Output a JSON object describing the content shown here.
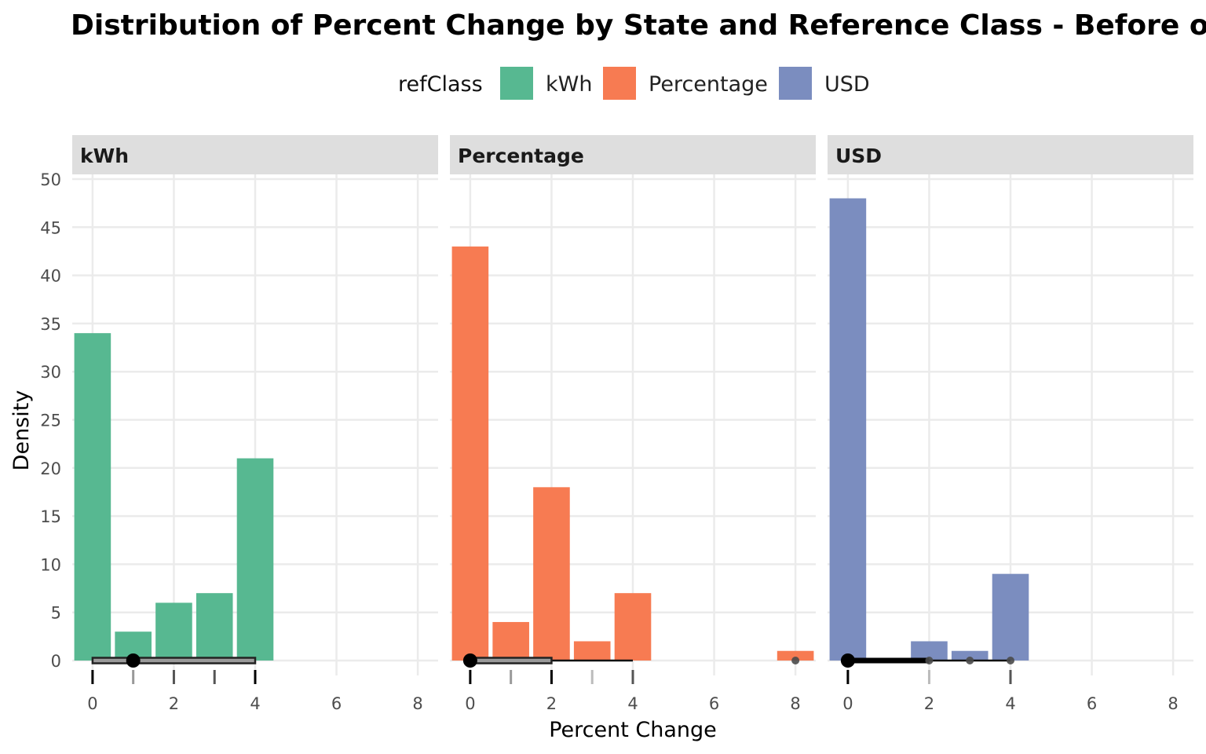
{
  "chart_data": {
    "type": "bar",
    "title": "Distribution of Percent Change by State and Reference Class - Before outli",
    "xlabel": "Percent Change",
    "ylabel": "Density",
    "xlim": [
      -0.5,
      8.5
    ],
    "ylim": [
      0,
      50
    ],
    "x_ticks": [
      0,
      2,
      4,
      6,
      8
    ],
    "y_ticks": [
      0,
      5,
      10,
      15,
      20,
      25,
      30,
      35,
      40,
      45,
      50
    ],
    "grid": true,
    "legend": {
      "title": "refClass",
      "position": "top",
      "entries": [
        {
          "label": "kWh",
          "color": "#57B891"
        },
        {
          "label": "Percentage",
          "color": "#F77B52"
        },
        {
          "label": "USD",
          "color": "#7B8DBF"
        }
      ]
    },
    "facets": [
      {
        "label": "kWh",
        "color": "#57B891",
        "bars": [
          {
            "x": 0,
            "value": 34
          },
          {
            "x": 1,
            "value": 3
          },
          {
            "x": 2,
            "value": 6
          },
          {
            "x": 3,
            "value": 7
          },
          {
            "x": 4,
            "value": 21
          }
        ],
        "rug": [
          {
            "x": 0,
            "shade": "#000000"
          },
          {
            "x": 1,
            "shade": "#999999"
          },
          {
            "x": 2,
            "shade": "#555555"
          },
          {
            "x": 3,
            "shade": "#555555"
          },
          {
            "x": 4,
            "shade": "#000000"
          }
        ],
        "boxplot": {
          "min": 0,
          "q1": 0,
          "median": 1,
          "q3": 4,
          "max": 4,
          "outliers": []
        }
      },
      {
        "label": "Percentage",
        "color": "#F77B52",
        "bars": [
          {
            "x": 0,
            "value": 43
          },
          {
            "x": 1,
            "value": 4
          },
          {
            "x": 2,
            "value": 18
          },
          {
            "x": 3,
            "value": 2
          },
          {
            "x": 4,
            "value": 7
          },
          {
            "x": 8,
            "value": 1
          }
        ],
        "rug": [
          {
            "x": 0,
            "shade": "#000000"
          },
          {
            "x": 1,
            "shade": "#999999"
          },
          {
            "x": 2,
            "shade": "#000000"
          },
          {
            "x": 3,
            "shade": "#bbbbbb"
          },
          {
            "x": 4,
            "shade": "#555555"
          }
        ],
        "boxplot": {
          "min": 0,
          "q1": 0,
          "median": 0,
          "q3": 2,
          "max": 4,
          "outliers": [
            8
          ]
        }
      },
      {
        "label": "USD",
        "color": "#7B8DBF",
        "bars": [
          {
            "x": 0,
            "value": 48
          },
          {
            "x": 2,
            "value": 2
          },
          {
            "x": 3,
            "value": 1
          },
          {
            "x": 4,
            "value": 9
          }
        ],
        "rug": [
          {
            "x": 0,
            "shade": "#000000"
          },
          {
            "x": 2,
            "shade": "#bbbbbb"
          },
          {
            "x": 4,
            "shade": "#555555"
          }
        ],
        "boxplot": {
          "min": 0,
          "q1": 0,
          "median": 0,
          "q3": 0,
          "max": 0,
          "outliers": [
            2,
            3,
            4
          ]
        }
      }
    ]
  }
}
